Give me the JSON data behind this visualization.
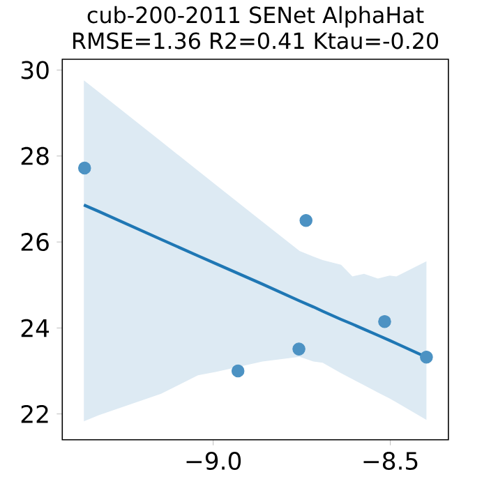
{
  "chart_data": {
    "type": "scatter",
    "title": "cub-200-2011 SENet AlphaHat",
    "subtitle": "RMSE=1.36  R2=0.41 Ktau=-0.20",
    "x": [
      -9.363,
      -8.93,
      -8.758,
      -8.738,
      -8.516,
      -8.398
    ],
    "series": [
      {
        "color": "#4c92c3",
        "marker": "circle",
        "values": [
          27.72,
          23.0,
          23.51,
          26.5,
          24.15,
          23.32
        ]
      },
      {
        "type": "line",
        "color": "#1f77b4",
        "marker": "none",
        "line_style": "solid",
        "x": [
          -9.365,
          -9.323,
          -9.147,
          -9.043,
          -8.991,
          -8.861,
          -8.756,
          -8.717,
          -8.691,
          -8.639,
          -8.607,
          -8.574,
          -8.535,
          -8.502,
          -8.483,
          -8.398
        ],
        "values": [
          26.86,
          26.71,
          26.06,
          25.68,
          25.49,
          25.02,
          24.63,
          24.49,
          24.39,
          24.2,
          24.09,
          23.97,
          23.83,
          23.71,
          23.64,
          23.32
        ],
        "upper": [
          29.76,
          29.49,
          28.34,
          27.66,
          27.32,
          26.47,
          25.79,
          25.66,
          25.58,
          25.47,
          25.2,
          25.26,
          25.15,
          25.22,
          25.2,
          25.55
        ],
        "lower": [
          21.83,
          21.97,
          22.47,
          22.9,
          22.98,
          23.22,
          23.33,
          23.22,
          23.19,
          22.95,
          22.81,
          22.67,
          22.5,
          22.36,
          22.27,
          21.86
        ]
      }
    ],
    "xlim": [
      -9.426,
      -8.336
    ],
    "ylim": [
      21.4,
      30.25
    ],
    "xticks": [
      {
        "value": -9.0,
        "label": "−9.0"
      },
      {
        "value": -8.5,
        "label": "−8.5"
      }
    ],
    "yticks": [
      22,
      24,
      26,
      28,
      30
    ]
  }
}
